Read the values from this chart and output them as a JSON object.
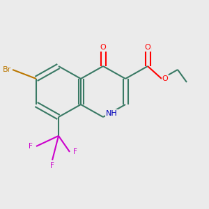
{
  "background_color": "#ebebeb",
  "bond_color": "#3a7a65",
  "atom_colors": {
    "O": "#ff0000",
    "N": "#0000bb",
    "Br": "#bb7700",
    "F": "#cc00cc",
    "C": "#3a7a65"
  },
  "figsize": [
    3.0,
    3.0
  ],
  "dpi": 100,
  "bond_lw": 1.4,
  "font_size": 7.5
}
